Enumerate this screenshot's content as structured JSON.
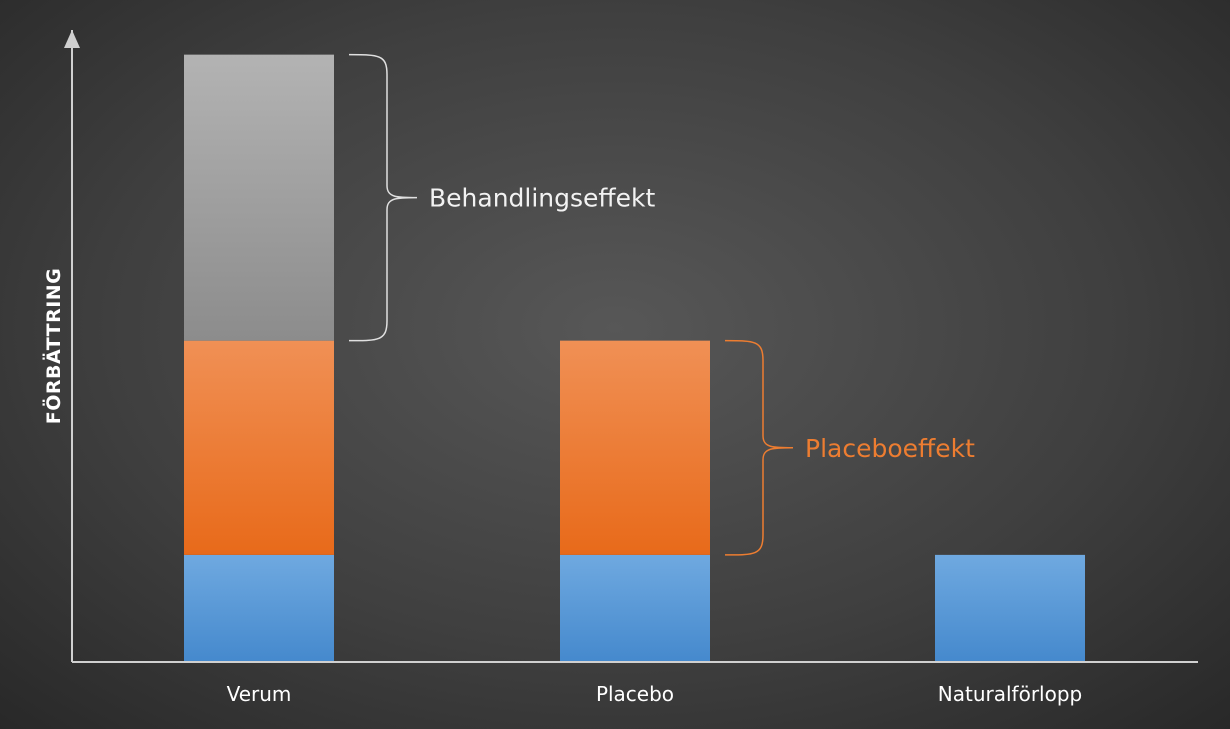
{
  "chart_data": {
    "type": "bar",
    "stacked": true,
    "ylabel": "FÖRBÄTTRING",
    "xlabel": "",
    "categories": [
      "Verum",
      "Placebo",
      "Naturalförlopp"
    ],
    "series": [
      {
        "key": "natural",
        "color": "#5b9bd5",
        "values": [
          1,
          1,
          1
        ]
      },
      {
        "key": "placebo",
        "color": "#ed7d31",
        "values": [
          2,
          2,
          0
        ]
      },
      {
        "key": "treatment",
        "color": "#a5a5a5",
        "values": [
          2.67,
          0,
          0
        ]
      }
    ],
    "ylim": [
      0,
      5.9
    ],
    "grid": false,
    "annotations": [
      {
        "text": "Behandlingseffekt",
        "category": "Verum",
        "series": "treatment",
        "color": "#f2f2f2"
      },
      {
        "text": "Placeboeffekt",
        "category": "Placebo",
        "series": "placebo",
        "color": "#ed7d31"
      }
    ]
  }
}
